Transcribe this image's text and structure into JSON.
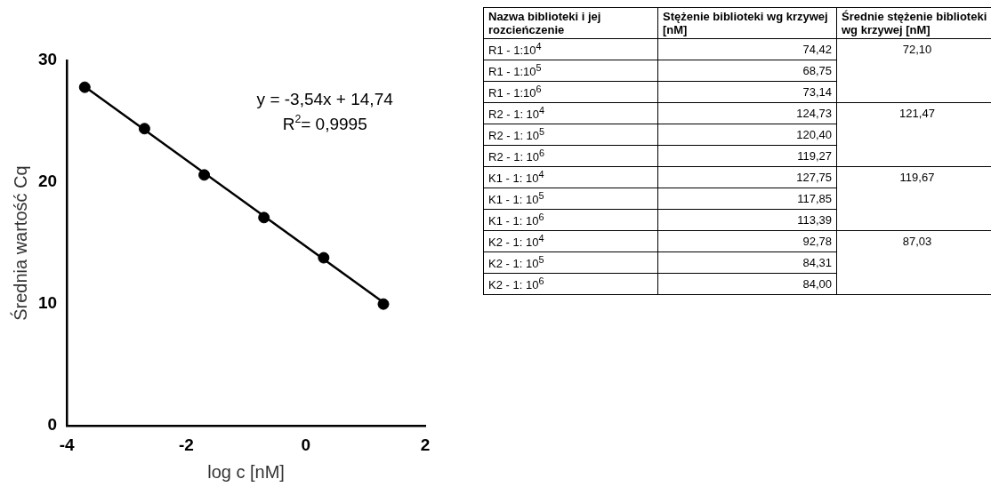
{
  "chart_data": [
    {
      "type": "scatter",
      "xlabel": "log c [nM]",
      "ylabel": "Średnia wartość Cq",
      "xlim": [
        -4,
        2
      ],
      "xticks": [
        -4,
        -2,
        0,
        2
      ],
      "ylim": [
        0,
        30
      ],
      "yticks": [
        0,
        10,
        20,
        30
      ],
      "grid": false,
      "legend": false,
      "series": [
        {
          "type": "scatter",
          "marker": "circle",
          "color": "#000000",
          "x": [
            -3.7,
            -2.7,
            -1.7,
            -0.7,
            0.3,
            1.3
          ],
          "values": [
            27.8,
            24.4,
            20.6,
            17.1,
            13.8,
            10.0
          ]
        },
        {
          "type": "line",
          "marker": "none",
          "color": "#000000",
          "x": [
            -3.7,
            1.3
          ],
          "values": [
            27.84,
            10.14
          ]
        }
      ],
      "annotations": [
        "y = -3,54x + 14,74",
        "R$^{2}$= 0,9995"
      ]
    },
    {
      "type": "other",
      "categories": [
        "Nazwa biblioteki i jej rozcieńczenie",
        "Stężenie biblioteki wg krzywej [nM]",
        "Średnie stężenie biblioteki wg krzywej [nM]"
      ],
      "cell_labels": [
        [
          "R1 - 1:10$^{4}$",
          "74,42",
          "72,10"
        ],
        [
          "R1 - 1:10$^{5}$",
          "68,75",
          null
        ],
        [
          "R1 - 1:10$^{6}$",
          "73,14",
          null
        ],
        [
          "R2 - 1: 10$^{4}$",
          "124,73",
          "121,47"
        ],
        [
          "R2 - 1: 10$^{5}$",
          "120,40",
          null
        ],
        [
          "R2 - 1: 10$^{6}$",
          "119,27",
          null
        ],
        [
          "K1 - 1: 10$^{4}$",
          "127,75",
          "119,67"
        ],
        [
          "K1 - 1: 10$^{5}$",
          "117,85",
          null
        ],
        [
          "K1 - 1: 10$^{6}$",
          "113,39",
          null
        ],
        [
          "K2 - 1: 10$^{4}$",
          "92,78",
          "87,03"
        ],
        [
          "K2 - 1: 10$^{5}$",
          "84,31",
          null
        ],
        [
          "K2 - 1: 10$^{6}$",
          "84,00",
          null
        ]
      ]
    }
  ]
}
